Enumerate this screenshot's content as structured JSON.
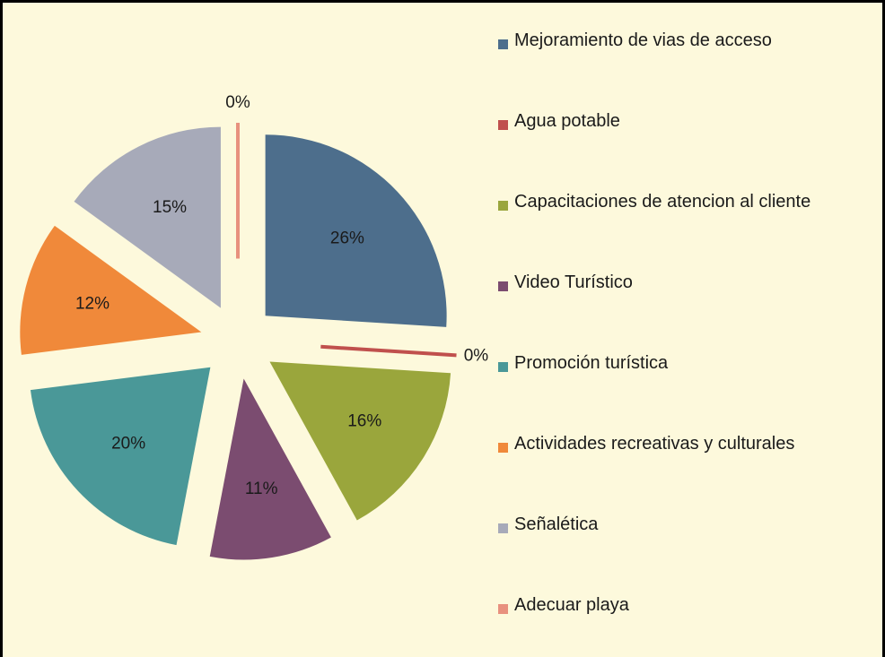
{
  "chart_data": {
    "type": "pie",
    "categories": [
      "Mejoramiento de vias de acceso",
      "Agua potable",
      "Capacitaciones de atencion al cliente",
      "Video Turístico",
      "Promoción turística",
      "Actividades recreativas y culturales",
      "Señalética",
      "Adecuar playa"
    ],
    "values": [
      26,
      0,
      16,
      11,
      20,
      12,
      15,
      0
    ],
    "value_labels": [
      "26%",
      "0%",
      "16%",
      "11%",
      "20%",
      "12%",
      "15%",
      "0%"
    ],
    "colors": [
      "#4d6e8c",
      "#c0504d",
      "#9aa63c",
      "#7b4c70",
      "#4a9898",
      "#f0893a",
      "#a7aab9",
      "#e8917e"
    ],
    "legend": "right"
  }
}
